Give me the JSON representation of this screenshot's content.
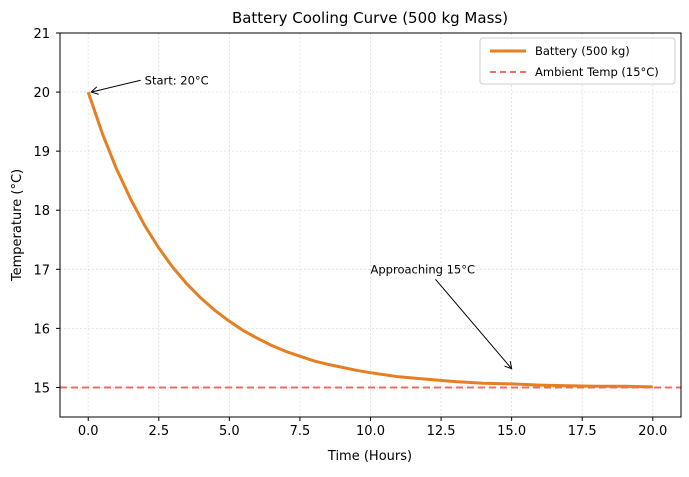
{
  "chart_data": {
    "type": "line",
    "title": "Battery Cooling Curve (500 kg Mass)",
    "xlabel": "Time (Hours)",
    "ylabel": "Temperature (°C)",
    "xlim": [
      -1,
      21
    ],
    "ylim": [
      14.5,
      21
    ],
    "xticks": [
      0,
      2.5,
      5,
      7.5,
      10,
      12.5,
      15,
      17.5,
      20
    ],
    "xtick_labels": [
      "0.0",
      "2.5",
      "5.0",
      "7.5",
      "10.0",
      "12.5",
      "15.0",
      "17.5",
      "20.0"
    ],
    "yticks": [
      15,
      16,
      17,
      18,
      19,
      20,
      21
    ],
    "ytick_labels": [
      "15",
      "16",
      "17",
      "18",
      "19",
      "20",
      "21"
    ],
    "grid": true,
    "legend_position": "top-right",
    "series": [
      {
        "name": "Battery (500 kg)",
        "color": "#e67e22",
        "style": "solid",
        "x": [
          0,
          0.5,
          1,
          1.5,
          2,
          2.5,
          3,
          3.5,
          4,
          4.5,
          5,
          5.5,
          6,
          6.5,
          7,
          7.5,
          8,
          8.5,
          9,
          9.5,
          10,
          11,
          12,
          13,
          14,
          15,
          16,
          17,
          18,
          19,
          20
        ],
        "y": [
          20,
          19.3,
          18.7,
          18.19,
          17.74,
          17.36,
          17.03,
          16.75,
          16.51,
          16.3,
          16.12,
          15.96,
          15.83,
          15.71,
          15.61,
          15.53,
          15.45,
          15.39,
          15.34,
          15.29,
          15.25,
          15.18,
          15.14,
          15.1,
          15.07,
          15.06,
          15.04,
          15.03,
          15.02,
          15.02,
          15.01
        ]
      },
      {
        "name": "Ambient Temp (15°C)",
        "color": "#e74c3c",
        "style": "dashed",
        "y_const": 15
      }
    ],
    "annotations": [
      {
        "text": "Start: 20°C",
        "text_xy": [
          2,
          20.2
        ],
        "arrow_to": [
          0,
          20
        ]
      },
      {
        "text": "Approaching 15°C",
        "text_xy": [
          10,
          17
        ],
        "arrow_to": [
          15,
          15.25
        ]
      }
    ]
  }
}
